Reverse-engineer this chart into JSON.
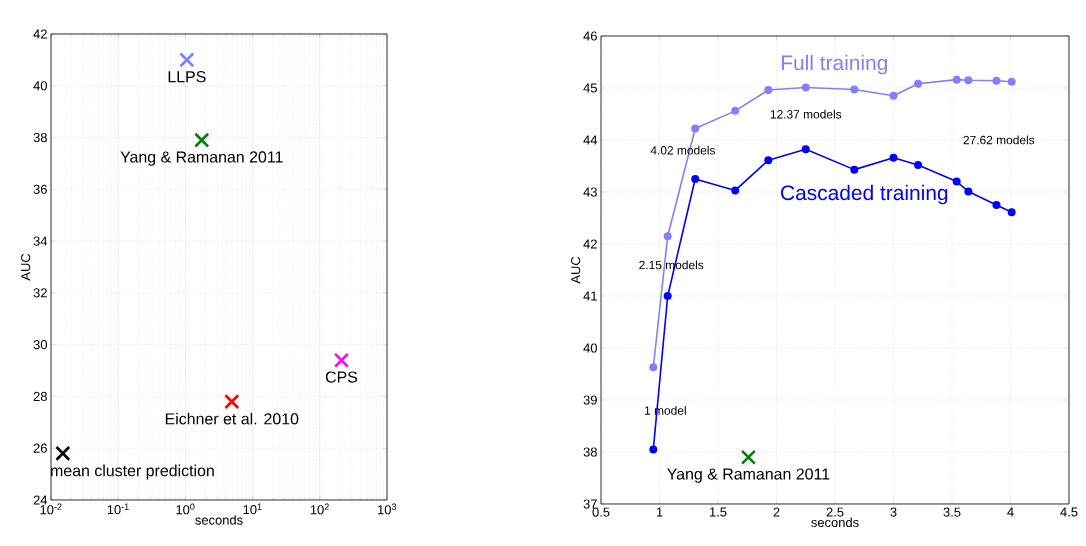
{
  "chart_data": [
    {
      "type": "scatter",
      "xlabel": "seconds",
      "ylabel": "AUC",
      "log": "x",
      "xlim": [
        0.01,
        1000
      ],
      "ylim": [
        24,
        42
      ],
      "xticks": [
        {
          "value": 0.01,
          "label": "10$^{-2}$"
        },
        {
          "value": 0.1,
          "label": "10$^{-1}$"
        },
        {
          "value": 1,
          "label": "10$^{0}$"
        },
        {
          "value": 10,
          "label": "10$^{1}$"
        },
        {
          "value": 100,
          "label": "10$^{2}$"
        },
        {
          "value": 1000,
          "label": "10$^{3}$"
        }
      ],
      "yticks": [
        24,
        26,
        28,
        30,
        32,
        34,
        36,
        38,
        40,
        42
      ],
      "grid": true,
      "marker": "cross",
      "series": [
        {
          "name": "LLPS",
          "color": "#8080ff",
          "x": [
            1.05
          ],
          "values": [
            41.0
          ]
        },
        {
          "name": "Yang & Ramanan 2011",
          "color": "#008000",
          "x": [
            1.75
          ],
          "values": [
            37.9
          ]
        },
        {
          "name": "Eichner et al. 2010",
          "color": "#ff0000",
          "x": [
            4.9
          ],
          "values": [
            27.8
          ]
        },
        {
          "name": "CPS",
          "color": "#ff00ff",
          "x": [
            210
          ],
          "values": [
            29.4
          ]
        },
        {
          "name": "mean cluster prediction",
          "color": "#000000",
          "x": [
            0.015
          ],
          "values": [
            25.8
          ]
        }
      ]
    },
    {
      "type": "line",
      "xlabel": "seconds",
      "ylabel": "AUC",
      "xlim": [
        0.5,
        4.5
      ],
      "ylim": [
        37,
        46
      ],
      "xticks": [
        0.5,
        1,
        1.5,
        2,
        2.5,
        3,
        3.5,
        4,
        4.5
      ],
      "yticks": [
        37,
        38,
        39,
        40,
        41,
        42,
        43,
        44,
        45,
        46
      ],
      "grid": true,
      "marker": "circle",
      "series": [
        {
          "name": "Full training",
          "color": "#8080ff",
          "x": [
            0.947,
            1.07,
            1.305,
            1.647,
            1.93,
            2.25,
            2.665,
            3.0,
            3.21,
            3.54,
            3.64,
            3.88,
            4.01
          ],
          "values": [
            39.63,
            42.15,
            44.22,
            44.56,
            44.96,
            45.01,
            44.97,
            44.85,
            45.08,
            45.16,
            45.15,
            45.14,
            45.12
          ]
        },
        {
          "name": "Cascaded training",
          "color": "#0000ff",
          "x": [
            0.947,
            1.07,
            1.305,
            1.647,
            1.93,
            2.25,
            2.665,
            3.0,
            3.21,
            3.54,
            3.64,
            3.88,
            4.01
          ],
          "values": [
            38.05,
            41.0,
            43.25,
            43.03,
            43.61,
            43.82,
            43.43,
            43.66,
            43.52,
            43.2,
            43.01,
            42.75,
            42.61
          ]
        },
        {
          "name": "Yang & Ramanan 2011",
          "type": "scatter",
          "marker": "cross",
          "color": "#008000",
          "x": [
            1.76
          ],
          "values": [
            37.9
          ]
        }
      ],
      "annotations": [
        "1 model",
        "2.15 models",
        "4.02 models",
        "12.37 models",
        "27.62 models"
      ]
    }
  ]
}
